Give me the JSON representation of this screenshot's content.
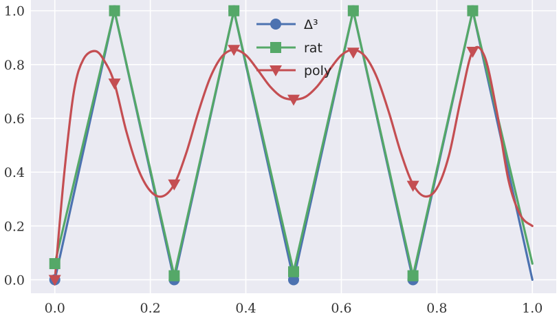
{
  "chart_data": {
    "type": "line",
    "xlim": [
      -0.05,
      1.05
    ],
    "ylim": [
      -0.05,
      1.04
    ],
    "x_ticks": [
      "0.0",
      "0.2",
      "0.4",
      "0.6",
      "0.8",
      "1.0"
    ],
    "y_ticks": [
      "0.0",
      "0.2",
      "0.4",
      "0.6",
      "0.8",
      "1.0"
    ],
    "grid": true,
    "background": "#eaeaf2",
    "grid_color": "#ffffff",
    "legend_position": "top-center",
    "series": [
      {
        "name": "Δ³",
        "color": "#4c72b0",
        "marker": "circle",
        "x": [
          0.0,
          0.125,
          0.25,
          0.375,
          0.5,
          0.625,
          0.75,
          0.875,
          1.0
        ],
        "y": [
          0.0,
          1.0,
          0.0,
          1.0,
          0.0,
          1.0,
          0.0,
          1.0,
          0.0
        ],
        "marker_x": [
          0.0,
          0.125,
          0.25,
          0.375,
          0.5,
          0.625,
          0.75,
          0.875
        ],
        "marker_y": [
          0.0,
          1.0,
          0.0,
          1.0,
          0.0,
          1.0,
          0.0,
          1.0
        ]
      },
      {
        "name": "rat",
        "color": "#55a868",
        "marker": "square",
        "x": [
          0.0,
          0.125,
          0.25,
          0.375,
          0.5,
          0.625,
          0.75,
          0.875,
          1.0
        ],
        "y": [
          0.06,
          1.0,
          0.015,
          1.0,
          0.03,
          1.0,
          0.015,
          1.0,
          0.06
        ],
        "marker_x": [
          0.0,
          0.125,
          0.25,
          0.375,
          0.5,
          0.625,
          0.75,
          0.875
        ],
        "marker_y": [
          0.06,
          1.0,
          0.015,
          1.0,
          0.03,
          1.0,
          0.015,
          1.0
        ]
      },
      {
        "name": "poly",
        "color": "#c44e52",
        "marker": "triangle-down",
        "smooth": true,
        "x": [
          0.0,
          0.02,
          0.04,
          0.06,
          0.085,
          0.105,
          0.125,
          0.15,
          0.175,
          0.2,
          0.225,
          0.25,
          0.275,
          0.3,
          0.325,
          0.35,
          0.375,
          0.4,
          0.425,
          0.45,
          0.475,
          0.5,
          0.525,
          0.55,
          0.575,
          0.6,
          0.625,
          0.65,
          0.675,
          0.7,
          0.725,
          0.75,
          0.775,
          0.8,
          0.825,
          0.85,
          0.875,
          0.9,
          0.925,
          0.95,
          0.975,
          1.0
        ],
        "y": [
          0.0,
          0.4,
          0.7,
          0.82,
          0.85,
          0.81,
          0.73,
          0.55,
          0.41,
          0.33,
          0.31,
          0.355,
          0.47,
          0.62,
          0.75,
          0.83,
          0.855,
          0.835,
          0.78,
          0.72,
          0.68,
          0.67,
          0.68,
          0.72,
          0.78,
          0.835,
          0.855,
          0.83,
          0.75,
          0.62,
          0.47,
          0.355,
          0.31,
          0.34,
          0.46,
          0.67,
          0.85,
          0.83,
          0.63,
          0.37,
          0.24,
          0.2
        ],
        "marker_x": [
          0.0,
          0.125,
          0.25,
          0.375,
          0.5,
          0.625,
          0.75,
          0.875
        ],
        "marker_y": [
          0.0,
          0.73,
          0.355,
          0.855,
          0.67,
          0.845,
          0.35,
          0.848
        ]
      }
    ]
  }
}
